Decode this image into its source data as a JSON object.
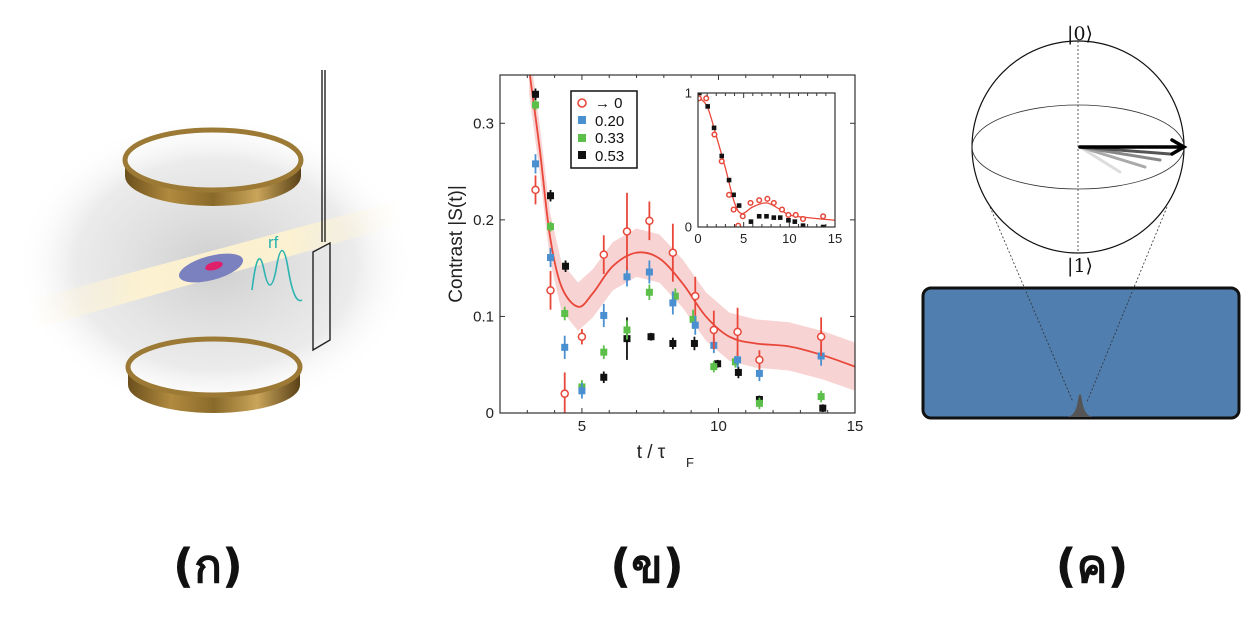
{
  "panels": {
    "a": {
      "label": "(ก)",
      "rf_label": "rf"
    },
    "b": {
      "label": "(ข)"
    },
    "c": {
      "label": "(ค)",
      "ket_top": "|0⟩",
      "ket_bottom": "|1⟩"
    }
  },
  "colors": {
    "red": "#e8473a",
    "blue": "#4a90d0",
    "green": "#5cbf4a",
    "black": "#111111",
    "band": "#f6c4c4",
    "substrate": "#4f7eaf"
  },
  "chart_data": [
    {
      "type": "scatter",
      "title": "",
      "xlabel": "t / τ",
      "xlabel_sub": "F",
      "ylabel": "Contrast |S(t)|",
      "xlim": [
        2,
        15
      ],
      "ylim": [
        0,
        0.35
      ],
      "xticks": [
        5,
        10,
        15
      ],
      "yticks": [
        0,
        0.1,
        0.2,
        0.3
      ],
      "ytick_labels": [
        "0",
        "0.1",
        "0.2",
        "0.3"
      ],
      "legend_position": "top-left",
      "series": [
        {
          "name": "→ 0",
          "marker": "open-circle",
          "color": "#e8473a",
          "x": [
            3.3,
            3.85,
            4.37,
            5.0,
            5.8,
            6.65,
            7.47,
            8.33,
            9.15,
            9.83,
            10.7,
            11.5,
            13.76
          ],
          "y": [
            0.231,
            0.127,
            0.02,
            0.079,
            0.164,
            0.188,
            0.199,
            0.166,
            0.121,
            0.086,
            0.084,
            0.055,
            0.079
          ],
          "err": [
            0.015,
            0.02,
            0.022,
            0.008,
            0.02,
            0.04,
            0.02,
            0.03,
            0.02,
            0.02,
            0.025,
            0.01,
            0.02
          ]
        },
        {
          "name": "0.20",
          "marker": "square",
          "color": "#4a90d0",
          "x": [
            3.3,
            3.85,
            4.37,
            5.0,
            5.8,
            6.65,
            7.47,
            8.33,
            9.15,
            9.83,
            10.7,
            11.5,
            13.76
          ],
          "y": [
            0.258,
            0.161,
            0.068,
            0.023,
            0.101,
            0.141,
            0.146,
            0.114,
            0.091,
            0.07,
            0.055,
            0.041,
            0.059
          ],
          "err": [
            0.01,
            0.01,
            0.012,
            0.008,
            0.012,
            0.01,
            0.012,
            0.012,
            0.01,
            0.008,
            0.008,
            0.008,
            0.01
          ]
        },
        {
          "name": "0.33",
          "marker": "square",
          "color": "#5cbf4a",
          "x": [
            3.3,
            3.85,
            4.37,
            5.0,
            5.8,
            6.65,
            7.47,
            8.42,
            9.07,
            9.83,
            10.62,
            11.5,
            13.76
          ],
          "y": [
            0.319,
            0.193,
            0.103,
            0.027,
            0.063,
            0.086,
            0.125,
            0.121,
            0.097,
            0.048,
            0.053,
            0.01,
            0.017
          ],
          "err": [
            0.005,
            0.005,
            0.007,
            0.007,
            0.007,
            0.01,
            0.008,
            0.008,
            0.01,
            0.006,
            0.006,
            0.006,
            0.006
          ]
        },
        {
          "name": "0.53",
          "marker": "square",
          "color": "#111111",
          "x": [
            3.3,
            3.85,
            4.4,
            5.8,
            6.65,
            7.53,
            8.33,
            9.12,
            9.97,
            10.73,
            11.5,
            13.82
          ],
          "y": [
            0.33,
            0.225,
            0.152,
            0.037,
            0.077,
            0.079,
            0.072,
            0.072,
            0.051,
            0.042,
            0.014,
            0.005
          ],
          "err": [
            0.006,
            0.006,
            0.006,
            0.006,
            0.022,
            0.004,
            0.006,
            0.007,
            0.004,
            0.006,
            0.004,
            0.004
          ]
        }
      ],
      "fit": {
        "color": "#e8473a",
        "x": [
          3.07,
          3.46,
          3.83,
          4.25,
          4.86,
          5.4,
          6.13,
          6.99,
          7.84,
          8.69,
          9.54,
          10.4,
          11.37,
          12.58,
          13.8,
          15.0
        ],
        "y": [
          0.355,
          0.272,
          0.183,
          0.131,
          0.11,
          0.124,
          0.152,
          0.166,
          0.16,
          0.134,
          0.1,
          0.079,
          0.072,
          0.069,
          0.06,
          0.048
        ],
        "band_halfwidth": 0.025
      }
    },
    {
      "type": "scatter",
      "title": "inset",
      "xlim": [
        0,
        15
      ],
      "ylim": [
        0,
        1
      ],
      "xticks": [
        0,
        5,
        10,
        15
      ],
      "yticks": [
        0,
        1
      ],
      "series": [
        {
          "name": "→ 0",
          "marker": "open-circle",
          "color": "#e8473a",
          "x": [
            0.1,
            0.9,
            1.8,
            2.6,
            3.4,
            3.9,
            4.4,
            4.9,
            5.75,
            6.7,
            7.6,
            8.3,
            9.2,
            9.9,
            10.7,
            11.5,
            13.7
          ],
          "y": [
            0.96,
            0.96,
            0.69,
            0.49,
            0.24,
            0.13,
            0.01,
            0.08,
            0.18,
            0.2,
            0.21,
            0.18,
            0.13,
            0.09,
            0.09,
            0.06,
            0.08
          ]
        },
        {
          "name": "0.53",
          "marker": "square",
          "color": "#111111",
          "x": [
            0.15,
            1.06,
            1.76,
            2.6,
            3.4,
            3.9,
            4.5,
            5.8,
            6.7,
            7.5,
            8.3,
            9.0,
            9.9,
            10.6,
            11.5,
            13.7
          ],
          "y": [
            1.0,
            0.9,
            0.74,
            0.53,
            0.35,
            0.24,
            0.16,
            0.04,
            0.08,
            0.08,
            0.07,
            0.07,
            0.05,
            0.04,
            0.01,
            0.0
          ]
        }
      ],
      "fit": {
        "color": "#e8473a",
        "x": [
          0,
          1,
          2,
          3,
          4,
          4.8,
          6,
          7.5,
          9,
          10,
          12,
          15
        ],
        "y": [
          0.97,
          0.9,
          0.68,
          0.44,
          0.18,
          0.1,
          0.15,
          0.18,
          0.13,
          0.09,
          0.07,
          0.05
        ]
      }
    }
  ]
}
